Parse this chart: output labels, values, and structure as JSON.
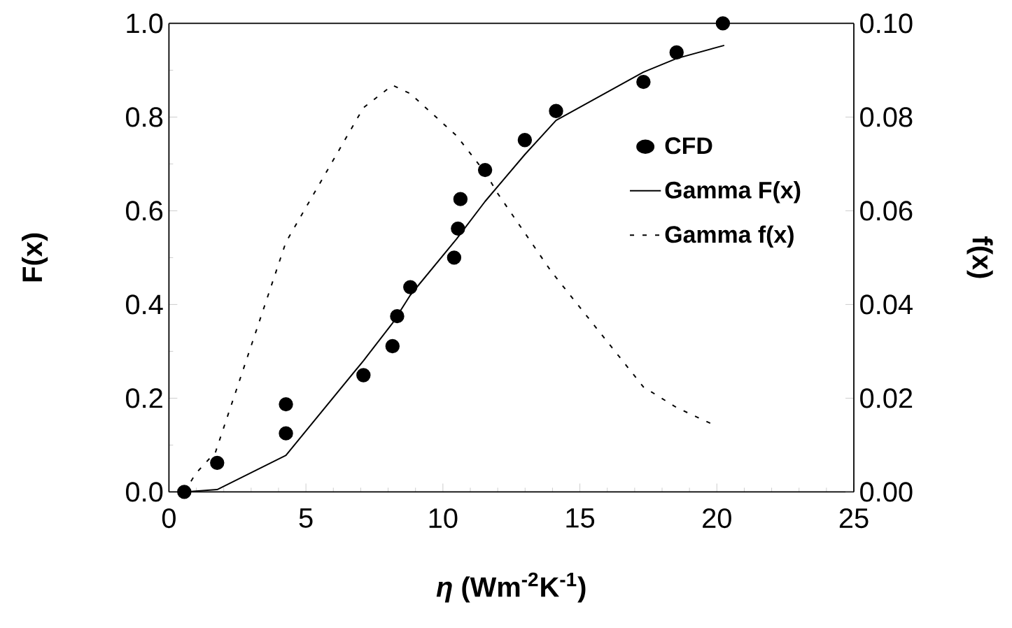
{
  "chart_data": {
    "type": "line",
    "xlabel": "*η* (Wm$^{-2}$K$^{-1}$)",
    "ylabel": "F(x)",
    "y2label": "f(x)",
    "xlim": [
      0,
      25
    ],
    "xticks": [
      0,
      5,
      10,
      15,
      20,
      25
    ],
    "ylim": [
      0,
      1
    ],
    "yticks": [
      {
        "value": 0,
        "label": "0.0"
      },
      {
        "value": 0.2,
        "label": "0.2"
      },
      {
        "value": 0.4,
        "label": "0.4"
      },
      {
        "value": 0.6,
        "label": "0.6"
      },
      {
        "value": 0.8,
        "label": "0.8"
      },
      {
        "value": 1,
        "label": "1.0"
      }
    ],
    "y2lim": [
      0,
      0.1
    ],
    "y2ticks": [
      {
        "value": 0,
        "label": "0.00"
      },
      {
        "value": 0.02,
        "label": "0.02"
      },
      {
        "value": 0.04,
        "label": "0.04"
      },
      {
        "value": 0.06,
        "label": "0.06"
      },
      {
        "value": 0.08,
        "label": "0.08"
      },
      {
        "value": 0.1,
        "label": "0.10"
      }
    ],
    "legend": "right",
    "grid": false,
    "series": [
      {
        "name": "CFD",
        "type": "scatter",
        "marker": "circle",
        "color": "#000000",
        "x": [
          0.56,
          1.76,
          4.27,
          4.27,
          7.1,
          8.16,
          8.33,
          8.81,
          10.41,
          10.55,
          10.64,
          11.54,
          12.99,
          14.13,
          17.32,
          18.53,
          20.22
        ],
        "values": [
          0,
          0.062,
          0.125,
          0.187,
          0.249,
          0.311,
          0.375,
          0.437,
          0.5,
          0.562,
          0.625,
          0.687,
          0.751,
          0.813,
          0.875,
          0.938,
          1.0
        ]
      },
      {
        "name": "Gamma F(x)",
        "type": "line",
        "marker": "none",
        "line_style": "solid",
        "color": "#000000",
        "x": [
          0.56,
          1.76,
          4.27,
          7.1,
          8.16,
          8.81,
          10.5,
          11.54,
          12.99,
          14.13,
          17.32,
          18.53,
          20.27
        ],
        "values": [
          0,
          0.005,
          0.078,
          0.28,
          0.36,
          0.42,
          0.54,
          0.62,
          0.72,
          0.793,
          0.896,
          0.925,
          0.953
        ]
      },
      {
        "name": "Gamma f(x)",
        "type": "line",
        "axis": "y2",
        "marker": "none",
        "line_style": "dashed",
        "color": "#000000",
        "x": [
          0.56,
          0.99,
          1.7,
          4.27,
          7.1,
          8.16,
          8.81,
          10.5,
          11.54,
          12.0,
          13.96,
          17.32,
          18.53,
          19.85
        ],
        "values": [
          0,
          0.004,
          0.0085,
          0.0533,
          0.082,
          0.0868,
          0.085,
          0.076,
          0.0682,
          0.0637,
          0.047,
          0.0224,
          0.018,
          0.0144
        ]
      }
    ]
  }
}
